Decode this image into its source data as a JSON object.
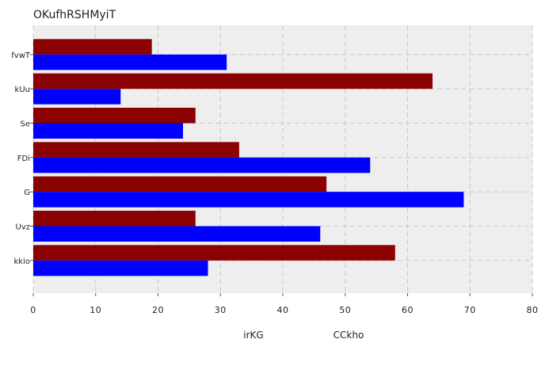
{
  "chart_data": {
    "type": "bar",
    "orientation": "horizontal",
    "title": "OKufhRSHMyiT",
    "xlabel": "",
    "ylabel": "",
    "categories": [
      "fvwT",
      "kUu",
      "Se",
      "FDi",
      "G",
      "Uvz",
      "kkio"
    ],
    "series": [
      {
        "name": "irKG",
        "color": "#8b0000",
        "values": [
          19,
          64,
          26,
          33,
          47,
          26,
          58
        ]
      },
      {
        "name": "CCkho",
        "color": "#0000ff",
        "values": [
          31,
          14,
          24,
          54,
          69,
          46,
          28
        ]
      }
    ],
    "xlim": [
      0,
      80
    ],
    "xticks": [
      0,
      10,
      20,
      30,
      40,
      50,
      60,
      70,
      80
    ],
    "grid": true,
    "legend_position": "bottom-center",
    "background": "#eeeeee"
  }
}
